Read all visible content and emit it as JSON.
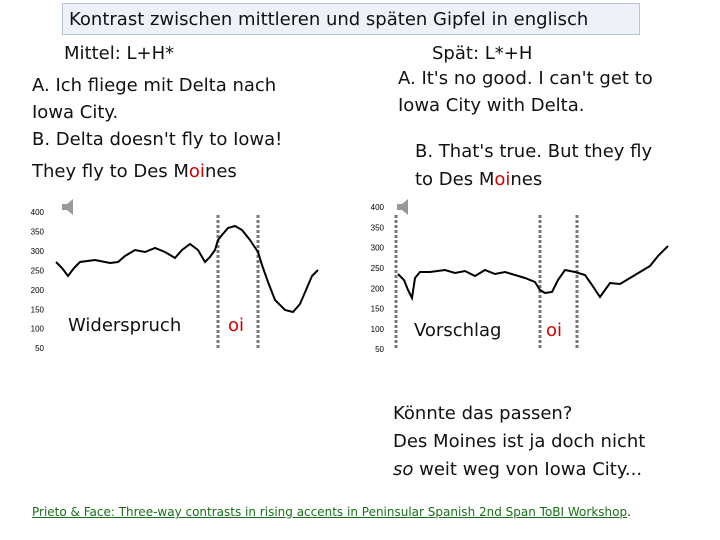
{
  "title": "Kontrast zwischen mittleren und späten Gipfel in englisch",
  "left": {
    "heading": "Mittel: L+H*",
    "lines": [
      "A. Ich fliege mit Delta nach",
      "Iowa City.",
      "B. Delta doesn't fly to Iowa!"
    ],
    "last_line": [
      "They fly to Des M",
      "oi",
      "nes"
    ],
    "chart": {
      "yticks": [
        "400",
        "350",
        "300",
        "250",
        "200",
        "150",
        "100",
        "50"
      ],
      "label": "Widerspruch",
      "marker": "oi"
    }
  },
  "right": {
    "heading": "Spät: L*+H",
    "lines": [
      "A. It's no good. I can't get to",
      "Iowa City with Delta.",
      "B. That's true. But they fly"
    ],
    "last_line": [
      "to Des M",
      "oi",
      "nes"
    ],
    "chart": {
      "yticks": [
        "400",
        "350",
        "300",
        "250",
        "200",
        "150",
        "100",
        "50"
      ],
      "label": "Vorschlag",
      "marker": "oi"
    }
  },
  "question": {
    "line1": "Könnte das passen?",
    "line2": "Des Moines ist ja doch nicht",
    "line3_em": "so",
    "line3_rest": " weit weg von Iowa City..."
  },
  "footer": {
    "link": "Prieto & Face: Three-way contrasts in rising accents in Peninsular Spanish 2nd Span ToBI Workshop",
    "end": "."
  }
}
